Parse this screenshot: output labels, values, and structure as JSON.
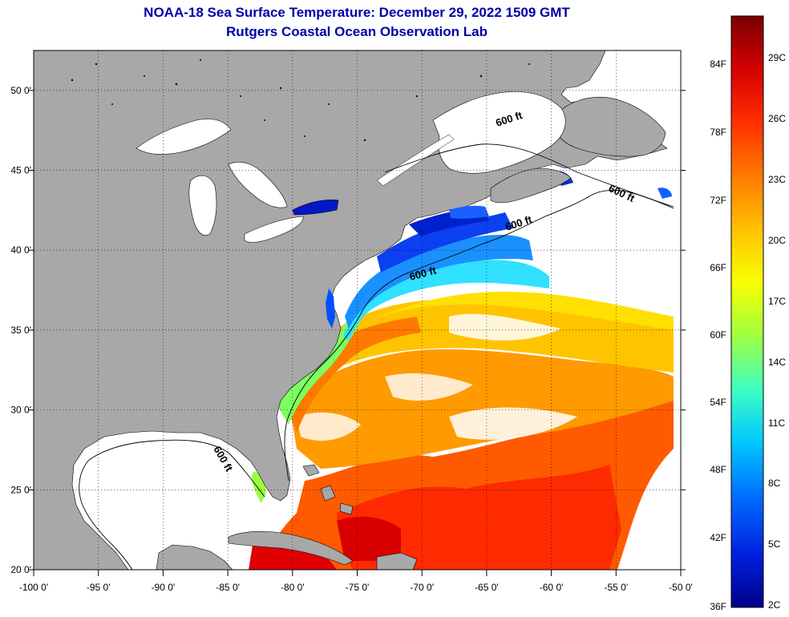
{
  "title": "NOAA-18 Sea Surface Temperature:  December 29, 2022 1509 GMT",
  "subtitle": "Rutgers Coastal Ocean Observation Lab",
  "map": {
    "lon_min": -100,
    "lon_max": -50,
    "lat_min": 20,
    "lat_max": 52.5,
    "lon_ticks": [
      "-100 0'",
      "-95 0'",
      "-90 0'",
      "-85 0'",
      "-80 0'",
      "-75 0'",
      "-70 0'",
      "-65 0'",
      "-60 0'",
      "-55 0'",
      "-50 0'"
    ],
    "lat_ticks": [
      "20 0'",
      "25 0'",
      "30 0'",
      "35 0'",
      "40 0'",
      "45 0'",
      "50 0'"
    ],
    "contour_label": "600 ft",
    "land_color": "#a8a8a8",
    "cloud_color": "#ffffff"
  },
  "colorbar": {
    "fahrenheit_labels": [
      "84F",
      "78F",
      "72F",
      "66F",
      "60F",
      "54F",
      "48F",
      "42F",
      "36F"
    ],
    "celsius_labels": [
      "29C",
      "26C",
      "23C",
      "20C",
      "17C",
      "14C",
      "11C",
      "8C",
      "5C",
      "2C"
    ],
    "colors_top_to_bottom": [
      "#7a0000",
      "#d40000",
      "#ff3000",
      "#ff7a00",
      "#ffc000",
      "#f8ff00",
      "#a0ff40",
      "#40ffc0",
      "#00c8ff",
      "#0070ff",
      "#0020e0",
      "#000088"
    ]
  }
}
